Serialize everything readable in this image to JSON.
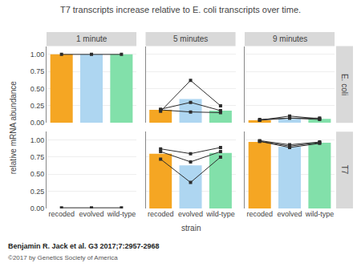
{
  "chart_data": {
    "type": "bar",
    "title": "T7 transcripts increase relative to E. coli transcripts over time.",
    "xlabel": "strain",
    "ylabel": "relative mRNA abundance",
    "categories": [
      "recoded",
      "evolved",
      "wild-type"
    ],
    "colors": [
      "#F5A623",
      "#AED6F1",
      "#82E0AA"
    ],
    "ylim": [
      0.0,
      1.12
    ],
    "yticks": [
      {
        "value": 0.0,
        "label": "0.00"
      },
      {
        "value": 0.25,
        "label": "0.25"
      },
      {
        "value": 0.5,
        "label": "0.50"
      },
      {
        "value": 0.75,
        "label": "0.75"
      },
      {
        "value": 1.0,
        "label": "1.00"
      }
    ],
    "grid": true,
    "columns": [
      "1 minute",
      "5 minutes",
      "9 minutes"
    ],
    "rows": [
      {
        "label": "E. coli",
        "panels": [
          {
            "values": [
              1.0,
              1.0,
              1.0
            ],
            "series": [
              {
                "type": "line",
                "color": "#2C2C2C",
                "marker": "square",
                "values": [
                  1.0,
                  1.0,
                  1.0
                ]
              }
            ]
          },
          {
            "values": [
              0.19,
              0.35,
              0.18
            ],
            "series": [
              {
                "type": "line",
                "color": "#2C2C2C",
                "marker": "square",
                "values": [
                  0.17,
                  0.62,
                  0.25
                ]
              },
              {
                "type": "line",
                "color": "#2C2C2C",
                "marker": "square",
                "values": [
                  0.19,
                  0.16,
                  0.15
                ]
              },
              {
                "type": "line",
                "color": "#2C2C2C",
                "marker": "square",
                "values": [
                  0.2,
                  0.3,
                  0.18
                ]
              }
            ]
          },
          {
            "values": [
              0.04,
              0.06,
              0.06
            ],
            "series": [
              {
                "type": "line",
                "color": "#2C2C2C",
                "marker": "square",
                "values": [
                  0.05,
                  0.07,
                  0.07
                ]
              },
              {
                "type": "line",
                "color": "#2C2C2C",
                "marker": "square",
                "values": [
                  0.04,
                  0.1,
                  0.06
                ]
              },
              {
                "type": "line",
                "color": "#2C2C2C",
                "marker": "square",
                "values": [
                  0.04,
                  0.07,
                  0.05
                ]
              }
            ]
          }
        ]
      },
      {
        "label": "T7",
        "panels": [
          {
            "values": [
              0.0,
              0.0,
              0.0
            ],
            "series": [
              {
                "type": "line",
                "color": "#2C2C2C",
                "marker": "square",
                "values": [
                  0.01,
                  0.01,
                  0.01
                ]
              }
            ]
          },
          {
            "values": [
              0.8,
              0.63,
              0.81
            ],
            "series": [
              {
                "type": "line",
                "color": "#2C2C2C",
                "marker": "square",
                "values": [
                  0.72,
                  0.38,
                  0.75
                ]
              },
              {
                "type": "line",
                "color": "#2C2C2C",
                "marker": "square",
                "values": [
                  0.83,
                  0.68,
                  0.83
                ]
              },
              {
                "type": "line",
                "color": "#2C2C2C",
                "marker": "square",
                "values": [
                  0.87,
                  0.8,
                  0.89
                ]
              }
            ]
          },
          {
            "values": [
              0.97,
              0.9,
              0.96
            ],
            "series": [
              {
                "type": "line",
                "color": "#2C2C2C",
                "marker": "square",
                "values": [
                  0.98,
                  0.91,
                  0.96
                ]
              },
              {
                "type": "line",
                "color": "#2C2C2C",
                "marker": "square",
                "values": [
                  0.98,
                  0.89,
                  0.95
                ]
              },
              {
                "type": "line",
                "color": "#2C2C2C",
                "marker": "square",
                "values": [
                  0.99,
                  0.93,
                  0.97
                ]
              }
            ]
          }
        ]
      }
    ],
    "annotations": [
      "Benjamin R. Jack et al. G3 2017;7:2957-2968",
      "©2017 by Genetics Society of America"
    ]
  }
}
